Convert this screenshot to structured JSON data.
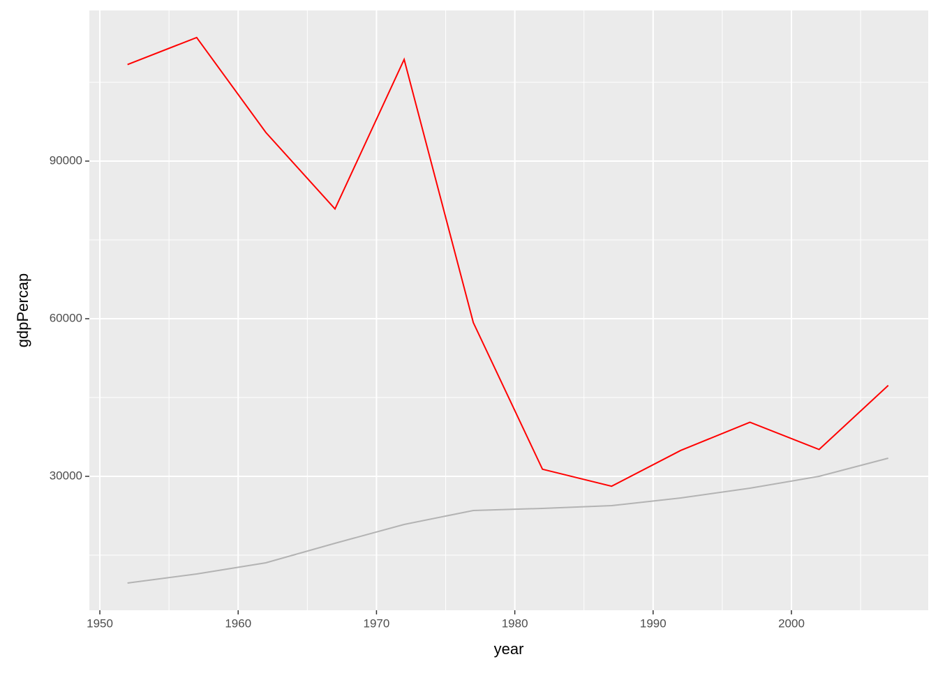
{
  "chart_data": {
    "type": "line",
    "x_label": "year",
    "y_label": "gdpPercap",
    "x": [
      1952,
      1957,
      1962,
      1967,
      1972,
      1977,
      1982,
      1987,
      1992,
      1997,
      2002,
      2007
    ],
    "series": [
      {
        "color": "#ff0000",
        "values": [
          108382,
          113523,
          95458,
          80895,
          109348,
          59265,
          31354,
          28118,
          34933,
          40301,
          35110,
          47307
        ]
      },
      {
        "color": "#b3b3b3",
        "values": [
          9691,
          11416,
          13540,
          17257,
          20841,
          23496,
          23894,
          24425,
          25885,
          27743,
          30000,
          33451
        ]
      }
    ],
    "xlim": [
      1949.24,
      2009.89
    ],
    "xticks": [
      1950,
      1960,
      1970,
      1980,
      1990,
      2000
    ],
    "xminorticks": [
      1955,
      1965,
      1975,
      1985,
      1995,
      2005
    ],
    "ylim": [
      4513,
      118672
    ],
    "yticks": [
      30000,
      60000,
      90000
    ],
    "yminorticks": [
      15000,
      45000,
      75000,
      105000
    ],
    "grid": true
  }
}
